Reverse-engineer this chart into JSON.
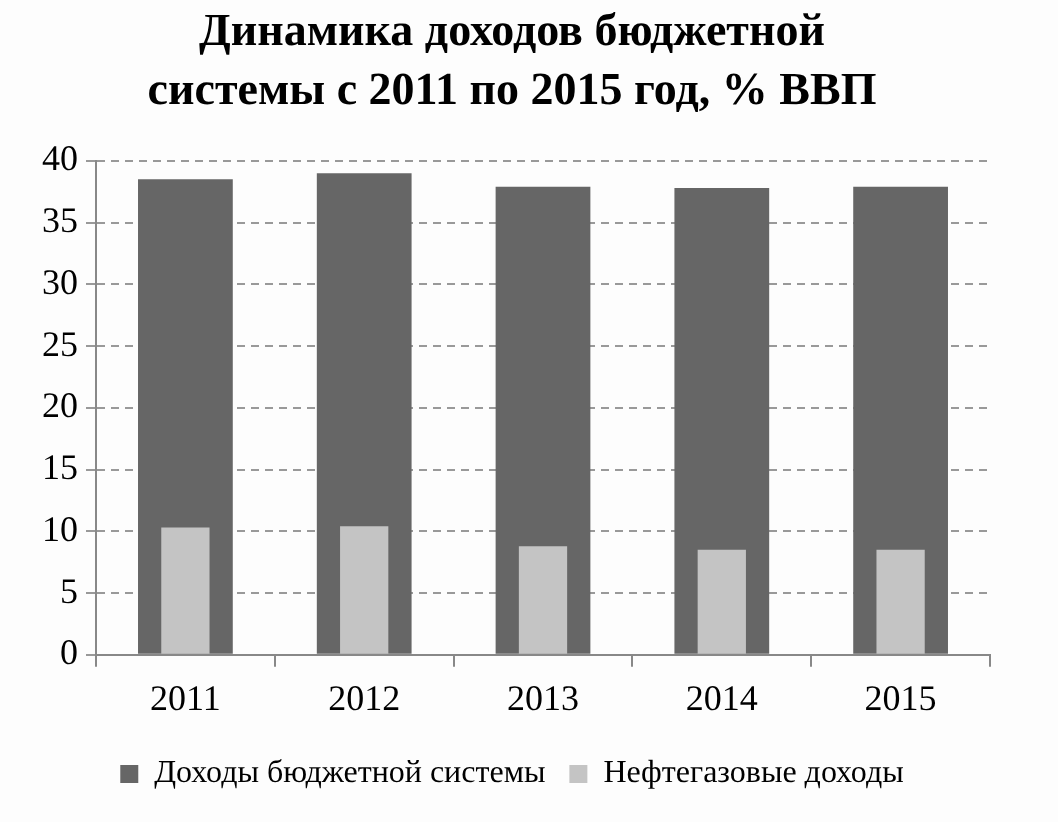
{
  "chart_data": {
    "type": "bar",
    "title": "Динамика доходов бюджетной\nсистемы с 2011 по 2015 год, % ВВП",
    "categories": [
      "2011",
      "2012",
      "2013",
      "2014",
      "2015"
    ],
    "series": [
      {
        "name": "Доходы бюджетной системы",
        "color": "#666666",
        "values": [
          38.5,
          39.0,
          37.9,
          37.8,
          37.9
        ]
      },
      {
        "name": "Нефтегазовые доходы",
        "color": "#c4c4c4",
        "values": [
          10.3,
          10.4,
          8.8,
          8.5,
          8.5
        ]
      }
    ],
    "ylim": [
      0,
      40
    ],
    "yticks": [
      0,
      5,
      10,
      15,
      20,
      25,
      30,
      35,
      40
    ],
    "grid": "y",
    "legend": "bottom"
  }
}
